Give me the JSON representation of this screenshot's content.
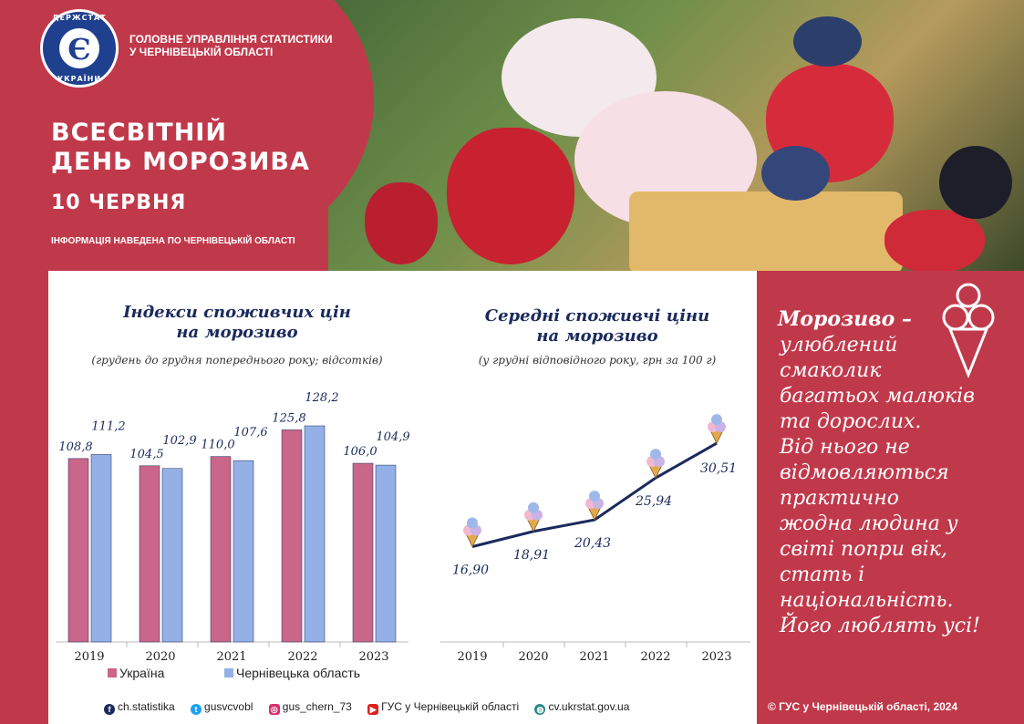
{
  "header": {
    "logo_ring_top": "ДЕРЖСТАТ",
    "logo_ring_bottom": "УКРАЇНИ",
    "logo_letter": "Є",
    "org_line1": "ГОЛОВНЕ УПРАВЛІННЯ СТАТИСТИКИ",
    "org_line2": "У ЧЕРНІВЕЦЬКІЙ ОБЛАСТІ",
    "title_line1": "ВСЕСВІТНІЙ",
    "title_line2": "ДЕНЬ МОРОЗИВА",
    "date": "10 ЧЕРВНЯ",
    "note": "ІНФОРМАЦІЯ НАВЕДЕНА ПО ЧЕРНІВЕЦЬКІЙ ОБЛАСТІ"
  },
  "chart_data": [
    {
      "type": "bar",
      "title": "Індекси споживчих цін на морозиво",
      "title_line1": "Індекси споживчих цін",
      "title_line2": "на морозиво",
      "subtitle": "(грудень до грудня попереднього року; відсотків)",
      "categories": [
        "2019",
        "2020",
        "2021",
        "2022",
        "2023"
      ],
      "series": [
        {
          "name": "Україна",
          "values": [
            108.8,
            104.5,
            110.0,
            125.8,
            106.0
          ],
          "labels": [
            "108,8",
            "104,5",
            "110,0",
            "125,8",
            "106,0"
          ],
          "color": "#c9668a"
        },
        {
          "name": "Чернівецька область",
          "values": [
            111.2,
            102.9,
            107.6,
            128.2,
            104.9
          ],
          "labels": [
            "111,2",
            "102,9",
            "107,6",
            "128,2",
            "104,9"
          ],
          "color": "#95b0e6"
        }
      ],
      "ylim": [
        0,
        128.2
      ],
      "grid": false
    },
    {
      "type": "line",
      "title": "Середні споживчі ціни на морозиво",
      "title_line1": "Середні споживчі ціни",
      "title_line2": "на морозиво",
      "subtitle": "(у грудні відповідного року, грн за 100 г)",
      "categories": [
        "2019",
        "2020",
        "2021",
        "2022",
        "2023"
      ],
      "values": [
        16.9,
        18.91,
        20.43,
        25.94,
        30.51
      ],
      "labels": [
        "16,90",
        "18,91",
        "20,43",
        "25,94",
        "30,51"
      ],
      "line_color": "#1b2a5c",
      "grid": false
    }
  ],
  "legend": {
    "ukraine": "Україна",
    "region": "Чернівецька область"
  },
  "footer": {
    "facebook": "ch.statistika",
    "twitter": "gusvcvobl",
    "instagram": "gus_chern_73",
    "youtube": "ГУС у Чернівецькій області",
    "web": "cv.ukrstat.gov.ua",
    "copyright": "© ГУС у Чернівецькій області, 2024"
  },
  "quote": {
    "bold": "Морозиво –",
    "lines": [
      "улюблений",
      "смаколик",
      "багатьох малюків",
      "та дорослих.",
      "Від нього не",
      "відмовляються",
      "практично",
      "жодна людина  у",
      "світі попри вік,",
      "стать і",
      "національність.",
      "Його люблять усі!"
    ]
  },
  "colors": {
    "brand_red": "#c0394b",
    "navy": "#1b2a5c"
  }
}
